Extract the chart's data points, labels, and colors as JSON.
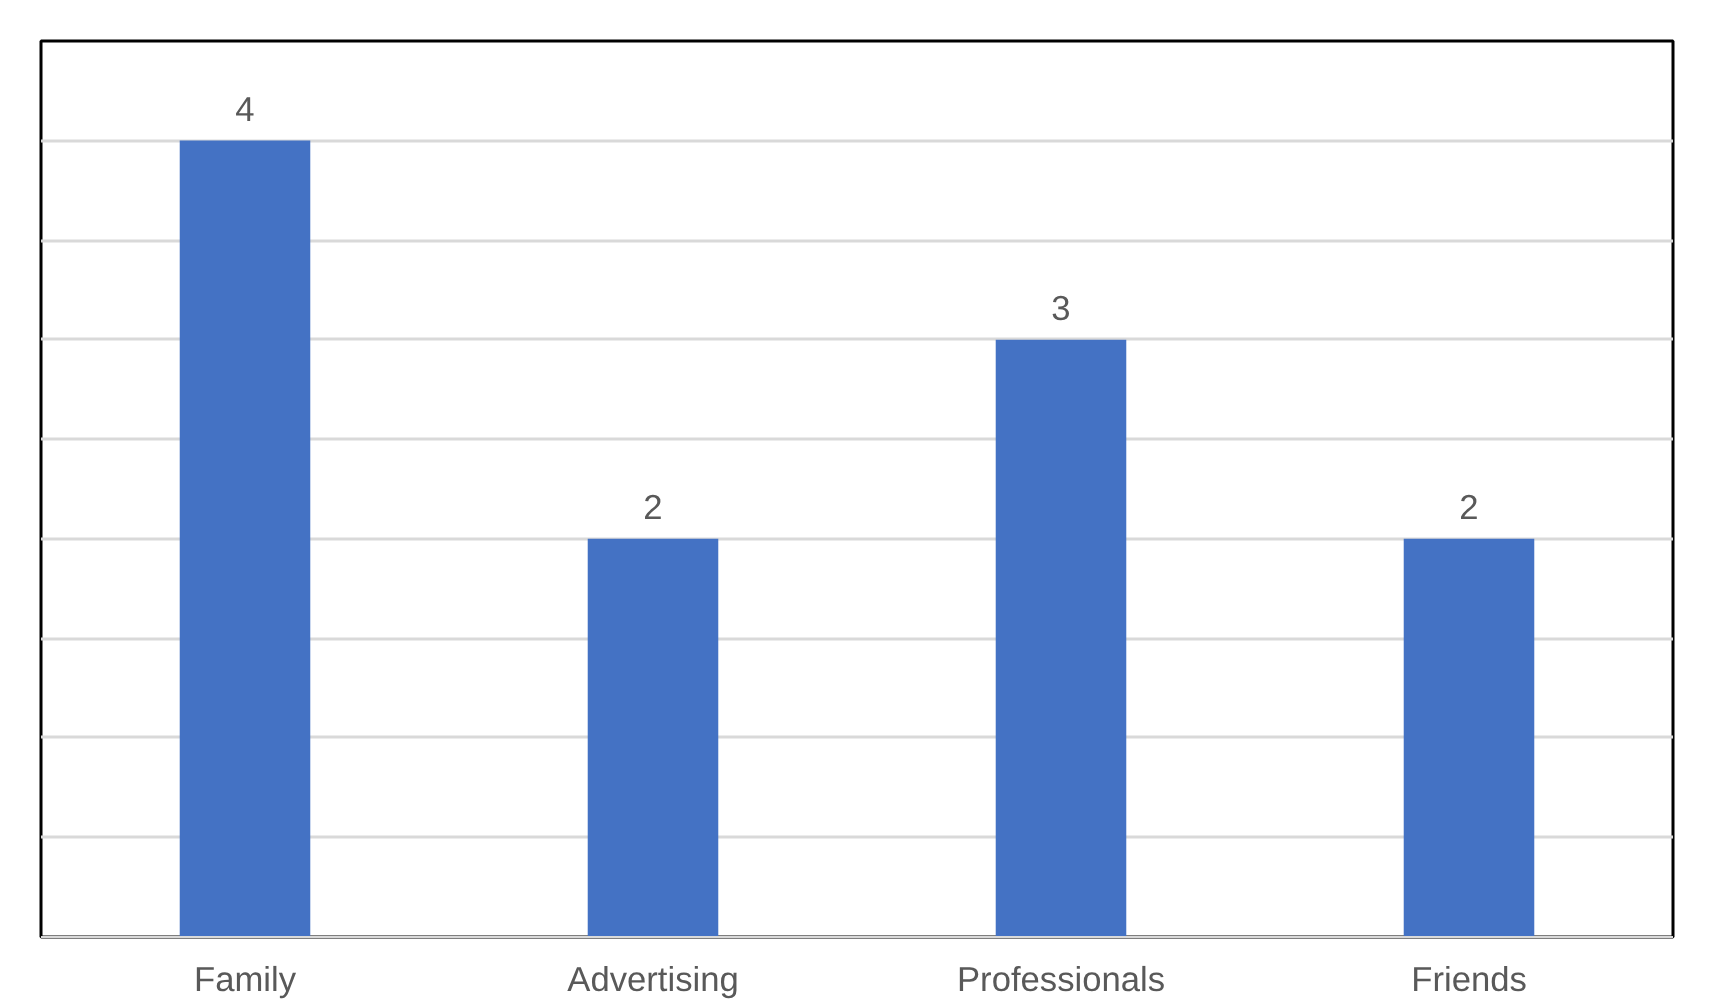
{
  "chart_data": {
    "type": "bar",
    "categories": [
      "Family",
      "Advertising",
      "Professionals",
      "Friends"
    ],
    "values": [
      4,
      2,
      3,
      2
    ],
    "color": "#4472c4",
    "data_labels": true,
    "ylim": [
      0,
      4.5
    ],
    "yticks": [
      {
        "value": 0,
        "label": null
      },
      {
        "value": 0.5,
        "label": null
      },
      {
        "value": 1,
        "label": null
      },
      {
        "value": 1.5,
        "label": null
      },
      {
        "value": 2,
        "label": null
      },
      {
        "value": 2.5,
        "label": null
      },
      {
        "value": 3,
        "label": null
      },
      {
        "value": 3.5,
        "label": null
      },
      {
        "value": 4,
        "label": null
      },
      {
        "value": 4.5,
        "label": null
      }
    ],
    "grid": "y",
    "tick_labels": "x"
  }
}
